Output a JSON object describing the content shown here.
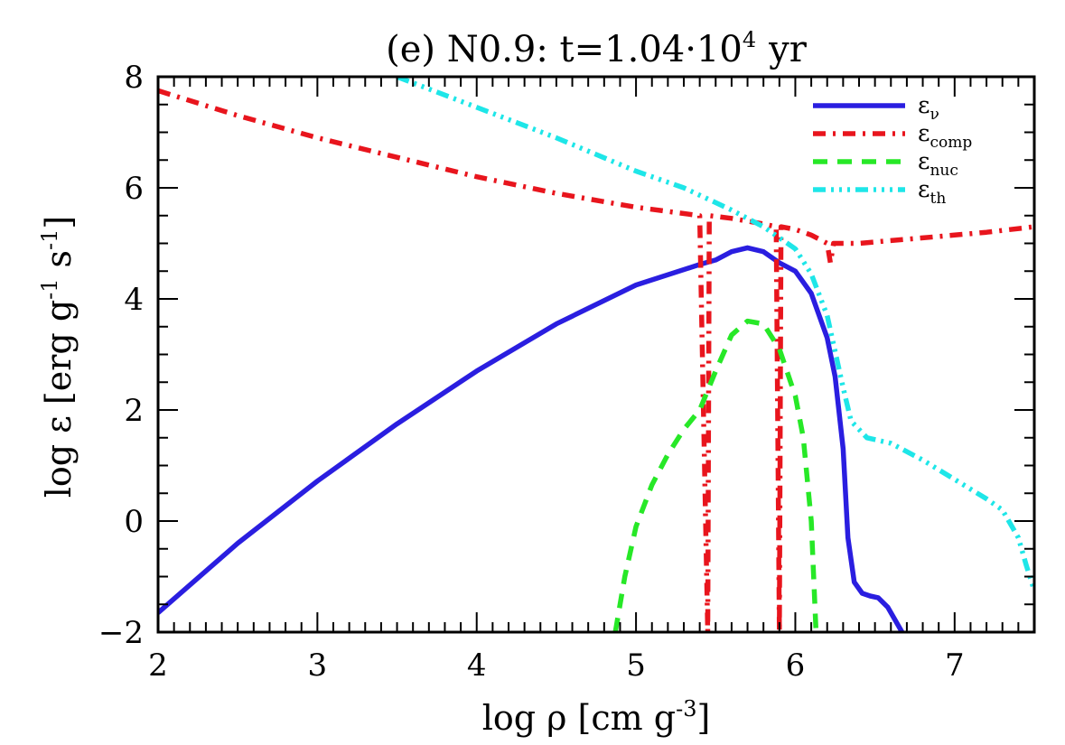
{
  "chart_data": {
    "type": "line",
    "title": {
      "main": "(e) N0.9: t=1.04·10",
      "exponent": "4",
      "unit": "yr"
    },
    "xlabel": {
      "text": "log ρ [cm g",
      "exponent": "-3",
      "close": "]"
    },
    "ylabel": {
      "pre": "log ε [erg g",
      "exp1": "-1",
      "mid": "s",
      "exp2": "-1",
      "close": "]"
    },
    "xlim": [
      2,
      7.5
    ],
    "ylim": [
      -2,
      8
    ],
    "xticks": [
      2,
      3,
      4,
      5,
      6,
      7
    ],
    "yticks": [
      -2,
      0,
      2,
      4,
      6,
      8
    ],
    "grid": false,
    "legend_position": "top-right",
    "series": [
      {
        "name": "εν",
        "legend_symbol": "ε",
        "legend_sub": "ν",
        "color": "#2a1ee0",
        "dash": "solid",
        "points": [
          [
            2.0,
            -1.65
          ],
          [
            2.5,
            -0.4
          ],
          [
            3.0,
            0.72
          ],
          [
            3.5,
            1.75
          ],
          [
            4.0,
            2.7
          ],
          [
            4.5,
            3.55
          ],
          [
            5.0,
            4.25
          ],
          [
            5.4,
            4.62
          ],
          [
            5.5,
            4.7
          ],
          [
            5.6,
            4.85
          ],
          [
            5.7,
            4.92
          ],
          [
            5.8,
            4.85
          ],
          [
            5.9,
            4.65
          ],
          [
            6.0,
            4.5
          ],
          [
            6.1,
            4.1
          ],
          [
            6.2,
            3.3
          ],
          [
            6.25,
            2.6
          ],
          [
            6.3,
            1.3
          ],
          [
            6.33,
            -0.3
          ],
          [
            6.37,
            -1.1
          ],
          [
            6.42,
            -1.3
          ],
          [
            6.47,
            -1.35
          ],
          [
            6.52,
            -1.38
          ],
          [
            6.58,
            -1.55
          ],
          [
            6.63,
            -1.8
          ],
          [
            6.67,
            -2.0
          ]
        ]
      },
      {
        "name": "εcomp",
        "legend_symbol": "ε",
        "legend_sub": "comp",
        "color": "#e8151d",
        "dash": "dashdot",
        "points": [
          [
            2.0,
            7.75
          ],
          [
            2.5,
            7.3
          ],
          [
            3.0,
            6.9
          ],
          [
            3.5,
            6.55
          ],
          [
            4.0,
            6.2
          ],
          [
            4.5,
            5.9
          ],
          [
            5.0,
            5.65
          ],
          [
            5.4,
            5.5
          ],
          [
            5.45,
            -2.0
          ],
          [
            5.46,
            5.5
          ],
          [
            5.6,
            5.45
          ],
          [
            5.8,
            5.35
          ],
          [
            5.88,
            5.3
          ],
          [
            5.9,
            -2.0
          ],
          [
            5.91,
            5.3
          ],
          [
            6.0,
            5.25
          ],
          [
            6.1,
            5.15
          ],
          [
            6.2,
            5.0
          ],
          [
            6.22,
            4.65
          ],
          [
            6.24,
            5.0
          ],
          [
            6.4,
            5.0
          ],
          [
            6.6,
            5.05
          ],
          [
            6.8,
            5.1
          ],
          [
            7.0,
            5.15
          ],
          [
            7.2,
            5.2
          ],
          [
            7.5,
            5.3
          ]
        ]
      },
      {
        "name": "εnuc",
        "legend_symbol": "ε",
        "legend_sub": "nuc",
        "color": "#27e827",
        "dash": "dashed",
        "points": [
          [
            4.87,
            -2.0
          ],
          [
            4.93,
            -1.0
          ],
          [
            5.0,
            -0.1
          ],
          [
            5.1,
            0.65
          ],
          [
            5.2,
            1.2
          ],
          [
            5.3,
            1.65
          ],
          [
            5.4,
            2.0
          ],
          [
            5.5,
            2.7
          ],
          [
            5.6,
            3.35
          ],
          [
            5.7,
            3.6
          ],
          [
            5.8,
            3.55
          ],
          [
            5.9,
            3.1
          ],
          [
            6.0,
            2.25
          ],
          [
            6.05,
            1.5
          ],
          [
            6.1,
            0.0
          ],
          [
            6.13,
            -2.0
          ]
        ]
      },
      {
        "name": "εth",
        "legend_symbol": "ε",
        "legend_sub": "th",
        "color": "#1ee6e8",
        "dash": "dashdotdotdot",
        "points": [
          [
            3.5,
            8.0
          ],
          [
            4.0,
            7.45
          ],
          [
            4.5,
            6.9
          ],
          [
            5.0,
            6.3
          ],
          [
            5.3,
            6.0
          ],
          [
            5.45,
            5.8
          ],
          [
            5.6,
            5.6
          ],
          [
            5.8,
            5.3
          ],
          [
            6.0,
            4.9
          ],
          [
            6.1,
            4.45
          ],
          [
            6.2,
            3.7
          ],
          [
            6.3,
            2.4
          ],
          [
            6.35,
            1.8
          ],
          [
            6.45,
            1.5
          ],
          [
            6.6,
            1.4
          ],
          [
            6.8,
            1.1
          ],
          [
            7.0,
            0.75
          ],
          [
            7.2,
            0.4
          ],
          [
            7.3,
            0.2
          ],
          [
            7.4,
            -0.3
          ],
          [
            7.45,
            -0.8
          ],
          [
            7.5,
            -1.25
          ]
        ]
      }
    ]
  }
}
